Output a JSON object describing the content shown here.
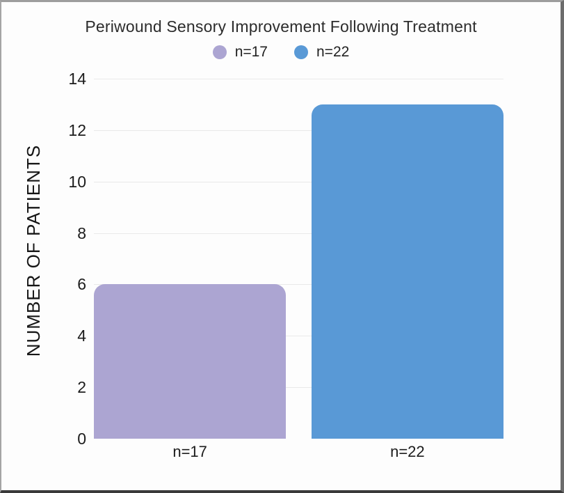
{
  "chart_data": {
    "type": "bar",
    "title": "Periwound Sensory Improvement Following Treatment",
    "categories": [
      "n=17",
      "n=22"
    ],
    "values": [
      6,
      13
    ],
    "bar_colors": [
      "#aca5d2",
      "#5999d6"
    ],
    "legend": [
      {
        "label": "n=17",
        "color": "#aca5d2"
      },
      {
        "label": "n=22",
        "color": "#5999d6"
      }
    ],
    "legend_position": "top",
    "xlabel": "",
    "ylabel": "NUMBER OF PATIENTS",
    "ylim": [
      0,
      14
    ],
    "yticks": [
      0,
      2,
      4,
      6,
      8,
      10,
      12,
      14
    ],
    "grid": "horizontal",
    "gridline_color": "#e9e9e9",
    "background_color": "#fdfdfd"
  }
}
